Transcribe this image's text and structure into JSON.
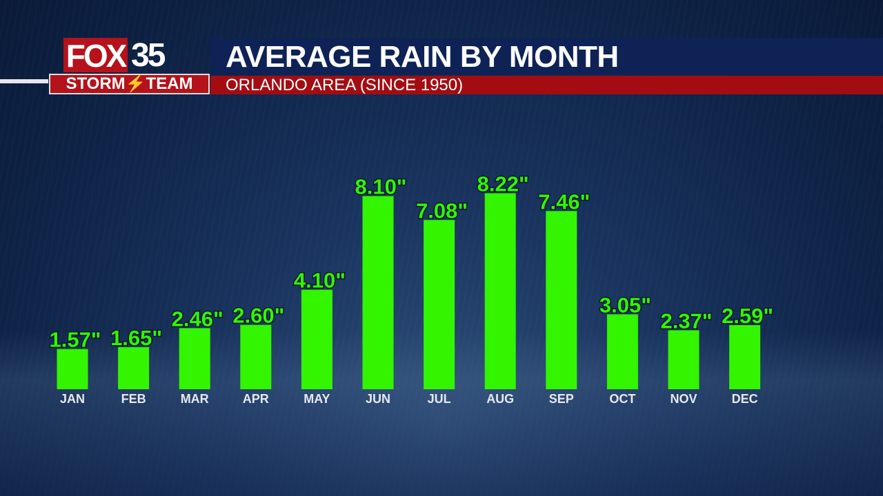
{
  "branding": {
    "station": "FOX",
    "channel": "35",
    "team": "STORM⚡TEAM"
  },
  "header": {
    "title": "AVERAGE RAIN BY MONTH",
    "subtitle": "ORLANDO AREA (SINCE 1950)"
  },
  "colors": {
    "bar": "#33f500",
    "header_navy": "#0e2256",
    "header_red": "#a30d12"
  },
  "chart_data": {
    "type": "bar",
    "title": "AVERAGE RAIN BY MONTH",
    "subtitle": "ORLANDO AREA (SINCE 1950)",
    "categories": [
      "JAN",
      "FEB",
      "MAR",
      "APR",
      "MAY",
      "JUN",
      "JUL",
      "AUG",
      "SEP",
      "OCT",
      "NOV",
      "DEC"
    ],
    "values": [
      1.57,
      1.65,
      2.46,
      2.6,
      4.1,
      8.1,
      7.08,
      8.22,
      7.46,
      3.05,
      2.37,
      2.59
    ],
    "data_labels": [
      "1.57\"",
      "1.65\"",
      "2.46\"",
      "2.60\"",
      "4.10\"",
      "8.10\"",
      "7.08\"",
      "8.22\"",
      "7.46\"",
      "3.05\"",
      "2.37\"",
      "2.59\""
    ],
    "unit": "inches",
    "grid": false,
    "legend": "none"
  }
}
